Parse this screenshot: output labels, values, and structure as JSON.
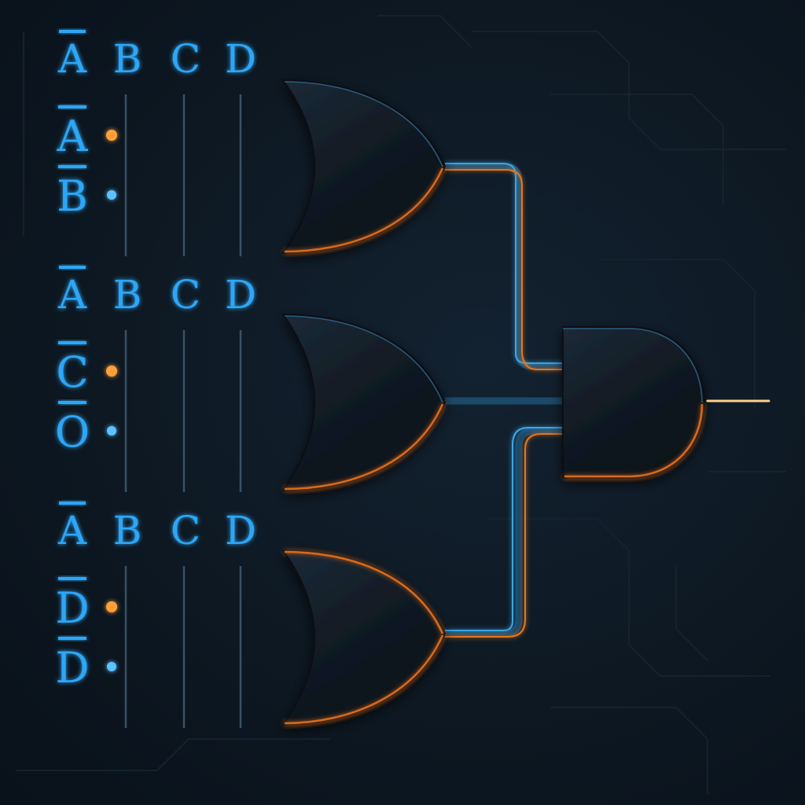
{
  "blocks": [
    {
      "header": [
        "A",
        "B",
        "C",
        "D"
      ],
      "header_overbar": [
        true,
        false,
        false,
        false
      ],
      "inputs": [
        {
          "label": "A",
          "overbar": true,
          "active": true
        },
        {
          "label": "B",
          "overbar": true,
          "active": false
        }
      ]
    },
    {
      "header": [
        "A",
        "B",
        "C",
        "D"
      ],
      "header_overbar": [
        true,
        false,
        false,
        false
      ],
      "inputs": [
        {
          "label": "C",
          "overbar": true,
          "active": true
        },
        {
          "label": "O",
          "overbar": true,
          "active": false
        }
      ]
    },
    {
      "header": [
        "A",
        "B",
        "C",
        "D"
      ],
      "header_overbar": [
        true,
        false,
        false,
        false
      ],
      "inputs": [
        {
          "label": "D",
          "overbar": true,
          "active": true
        },
        {
          "label": "D",
          "overbar": true,
          "active": false
        }
      ]
    }
  ],
  "gates": {
    "first_stage": [
      "or-gate",
      "or-gate",
      "or-gate"
    ],
    "output_stage": "and-gate"
  },
  "colors": {
    "background": "#0d1822",
    "signal_blue": "#2ea6f5",
    "signal_orange": "#ff8a1f",
    "gate_fill": "#131d27"
  }
}
